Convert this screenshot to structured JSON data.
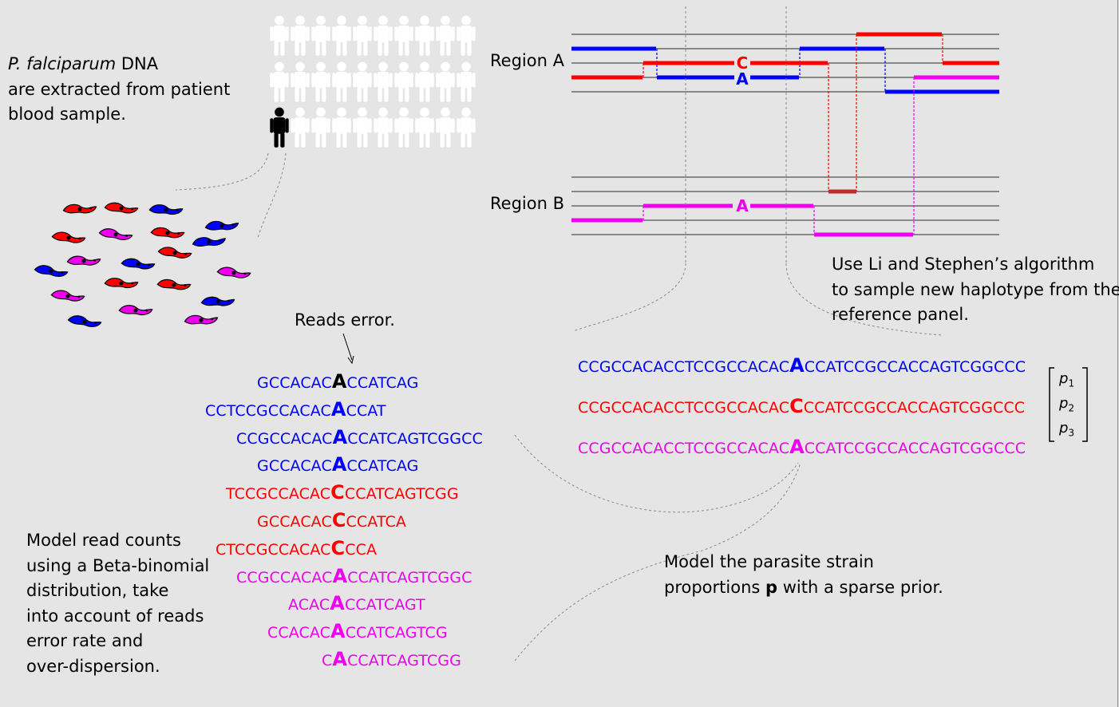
{
  "colors": {
    "blue": "#0000ff",
    "red": "#ff0000",
    "magenta": "#ee00ee",
    "gray": "#888888",
    "black": "#000000",
    "white": "#ffffff"
  },
  "intro": {
    "species": "P. falciparum",
    "species_rest": " DNA",
    "line2": "are extracted from patient",
    "line3": "blood sample."
  },
  "regions": {
    "a": "Region A",
    "b": "Region B"
  },
  "region_a_labels": {
    "c": "C",
    "a": "A"
  },
  "region_b_label": "A",
  "algorithm_note": [
    "Use Li and Stephen’s algorithm",
    "to sample new haplotype from the",
    "reference panel."
  ],
  "reads_error_label": "Reads error.",
  "reads": [
    {
      "pre": "GCCACAC",
      "allele": "A",
      "post": "CCATCAG",
      "color": "blue",
      "allele_color": "black"
    },
    {
      "pre": "CCTCCGCCACAC",
      "allele": "A",
      "post": "CCAT",
      "color": "blue",
      "allele_color": "blue"
    },
    {
      "pre": "CCGCCACAC",
      "allele": "A",
      "post": "CCATCAGTCGGCC",
      "color": "blue",
      "allele_color": "blue"
    },
    {
      "pre": "GCCACAC",
      "allele": "A",
      "post": "CCATCAG",
      "color": "blue",
      "allele_color": "blue"
    },
    {
      "pre": "TCCGCCACAC",
      "allele": "C",
      "post": "CCATCAGTCGG",
      "color": "red",
      "allele_color": "red"
    },
    {
      "pre": "GCCACAC",
      "allele": "C",
      "post": "CCATCA",
      "color": "red",
      "allele_color": "red"
    },
    {
      "pre": "CTCCGCCACAC",
      "allele": "C",
      "post": "CCA",
      "color": "red",
      "allele_color": "red"
    },
    {
      "pre": "CCGCCACAC",
      "allele": "A",
      "post": "CCATCAGTCGGC",
      "color": "magenta",
      "allele_color": "magenta"
    },
    {
      "pre": "ACAC",
      "allele": "A",
      "post": "CCATCAGT",
      "color": "magenta",
      "allele_color": "magenta"
    },
    {
      "pre": "CCACAC",
      "allele": "A",
      "post": "CCATCAGTCG",
      "color": "magenta",
      "allele_color": "magenta"
    },
    {
      "pre": "C",
      "allele": "A",
      "post": "CCATCAGTCGG",
      "color": "magenta",
      "allele_color": "magenta"
    }
  ],
  "haplotypes": [
    {
      "pre": "CCGCCACACCTCCGCCACAC",
      "allele": "A",
      "post": "CCATCCGCCACCAGTCGGCCC",
      "color": "blue"
    },
    {
      "pre": "CCGCCACACCTCCGCCACAC",
      "allele": "C",
      "post": "CCATCCGCCACCAGTCGGCCC",
      "color": "red"
    },
    {
      "pre": "CCGCCACACCTCCGCCACAC",
      "allele": "A",
      "post": "CCATCCGCCACCAGTCGGCCC",
      "color": "magenta"
    }
  ],
  "proportions": [
    {
      "sym": "p",
      "sub": "1"
    },
    {
      "sym": "p",
      "sub": "2"
    },
    {
      "sym": "p",
      "sub": "3"
    }
  ],
  "model_reads_note": [
    "Model read counts",
    "using a Beta-binomial",
    "distribution, take",
    "into account of reads",
    "error rate and",
    "over-dispersion."
  ],
  "model_strain_note": {
    "line1": "Model the parasite strain",
    "line2_pre": "proportions ",
    "line2_bold": "p",
    "line2_post": " with a sparse prior."
  }
}
